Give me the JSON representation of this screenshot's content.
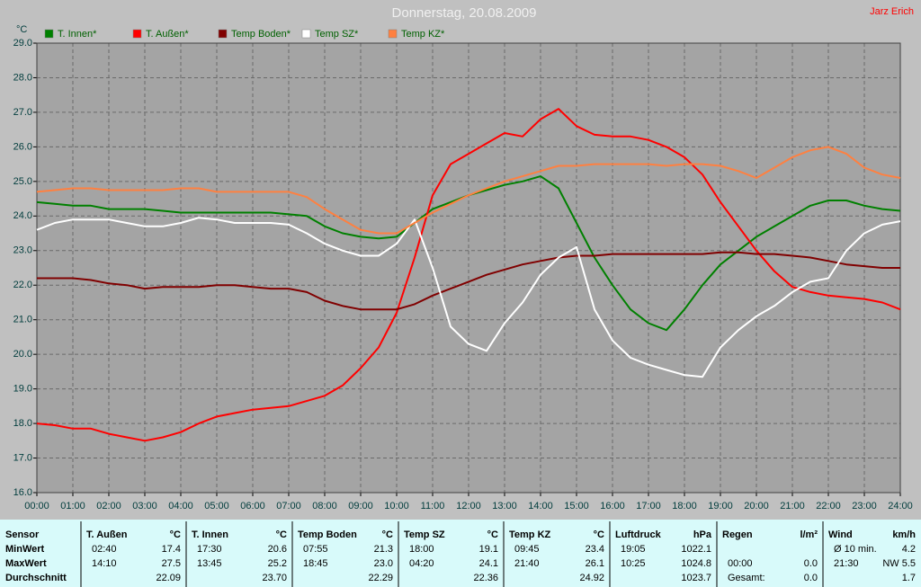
{
  "chart_data": {
    "type": "line",
    "title": "Donnerstag, 20.08.2009",
    "author": "Jarz Erich",
    "y_label": "°C",
    "grid": true,
    "x": [
      0,
      0.5,
      1,
      1.5,
      2,
      2.5,
      3,
      3.5,
      4,
      4.5,
      5,
      5.5,
      6,
      6.5,
      7,
      7.5,
      8,
      8.5,
      9,
      9.5,
      10,
      10.5,
      11,
      11.5,
      12,
      12.5,
      13,
      13.5,
      14,
      14.5,
      15,
      15.5,
      16,
      16.5,
      17,
      17.5,
      18,
      18.5,
      19,
      19.5,
      20,
      20.5,
      21,
      21.5,
      22,
      22.5,
      23,
      23.5,
      24
    ],
    "xlim": [
      0,
      24
    ],
    "xticks": [
      {
        "value": 0,
        "label": "00:00"
      },
      {
        "value": 1,
        "label": "01:00"
      },
      {
        "value": 2,
        "label": "02:00"
      },
      {
        "value": 3,
        "label": "03:00"
      },
      {
        "value": 4,
        "label": "04:00"
      },
      {
        "value": 5,
        "label": "05:00"
      },
      {
        "value": 6,
        "label": "06:00"
      },
      {
        "value": 7,
        "label": "07:00"
      },
      {
        "value": 8,
        "label": "08:00"
      },
      {
        "value": 9,
        "label": "09:00"
      },
      {
        "value": 10,
        "label": "10:00"
      },
      {
        "value": 11,
        "label": "11:00"
      },
      {
        "value": 12,
        "label": "12:00"
      },
      {
        "value": 13,
        "label": "13:00"
      },
      {
        "value": 14,
        "label": "14:00"
      },
      {
        "value": 15,
        "label": "15:00"
      },
      {
        "value": 16,
        "label": "16:00"
      },
      {
        "value": 17,
        "label": "17:00"
      },
      {
        "value": 18,
        "label": "18:00"
      },
      {
        "value": 19,
        "label": "19:00"
      },
      {
        "value": 20,
        "label": "20:00"
      },
      {
        "value": 21,
        "label": "21:00"
      },
      {
        "value": 22,
        "label": "22:00"
      },
      {
        "value": 23,
        "label": "23:00"
      },
      {
        "value": 24,
        "label": "24:00"
      }
    ],
    "ylim": [
      16,
      29
    ],
    "yticks": [
      {
        "value": 16,
        "label": "16.0"
      },
      {
        "value": 17,
        "label": "17.0"
      },
      {
        "value": 18,
        "label": "18.0"
      },
      {
        "value": 19,
        "label": "19.0"
      },
      {
        "value": 20,
        "label": "20.0"
      },
      {
        "value": 21,
        "label": "21.0"
      },
      {
        "value": 22,
        "label": "22.0"
      },
      {
        "value": 23,
        "label": "23.0"
      },
      {
        "value": 24,
        "label": "24.0"
      },
      {
        "value": 25,
        "label": "25.0"
      },
      {
        "value": 26,
        "label": "26.0"
      },
      {
        "value": 27,
        "label": "27.0"
      },
      {
        "value": 28,
        "label": "28.0"
      },
      {
        "value": 29,
        "label": "29.0"
      }
    ],
    "series": [
      {
        "name": "T. Innen*",
        "color": "#008000",
        "values": [
          24.4,
          24.35,
          24.3,
          24.3,
          24.2,
          24.2,
          24.2,
          24.15,
          24.1,
          24.1,
          24.1,
          24.1,
          24.1,
          24.1,
          24.05,
          24.0,
          23.7,
          23.5,
          23.4,
          23.35,
          23.4,
          23.8,
          24.2,
          24.4,
          24.6,
          24.75,
          24.9,
          25.0,
          25.15,
          24.8,
          23.8,
          22.8,
          22.0,
          21.3,
          20.9,
          20.7,
          21.3,
          22.0,
          22.6,
          23.0,
          23.4,
          23.7,
          24.0,
          24.3,
          24.45,
          24.45,
          24.3,
          24.2,
          24.15
        ]
      },
      {
        "name": "T. Außen*",
        "color": "#ff0000",
        "values": [
          18.0,
          17.95,
          17.85,
          17.85,
          17.7,
          17.6,
          17.5,
          17.6,
          17.75,
          18.0,
          18.2,
          18.3,
          18.4,
          18.45,
          18.5,
          18.65,
          18.8,
          19.1,
          19.6,
          20.2,
          21.2,
          22.8,
          24.6,
          25.5,
          25.8,
          26.1,
          26.4,
          26.3,
          26.8,
          27.1,
          26.6,
          26.35,
          26.3,
          26.3,
          26.2,
          26.0,
          25.7,
          25.2,
          24.4,
          23.7,
          23.0,
          22.4,
          21.95,
          21.8,
          21.7,
          21.65,
          21.6,
          21.5,
          21.3
        ]
      },
      {
        "name": "Temp Boden*",
        "color": "#800000",
        "values": [
          22.2,
          22.2,
          22.2,
          22.15,
          22.05,
          22.0,
          21.9,
          21.95,
          21.95,
          21.95,
          22.0,
          22.0,
          21.95,
          21.9,
          21.9,
          21.8,
          21.55,
          21.4,
          21.3,
          21.3,
          21.3,
          21.45,
          21.7,
          21.9,
          22.1,
          22.3,
          22.45,
          22.6,
          22.7,
          22.8,
          22.85,
          22.85,
          22.9,
          22.9,
          22.9,
          22.9,
          22.9,
          22.9,
          22.95,
          22.95,
          22.9,
          22.9,
          22.85,
          22.8,
          22.7,
          22.6,
          22.55,
          22.5,
          22.5
        ]
      },
      {
        "name": "Temp SZ*",
        "color": "#ffffff",
        "values": [
          23.6,
          23.8,
          23.9,
          23.9,
          23.9,
          23.8,
          23.7,
          23.7,
          23.8,
          23.95,
          23.9,
          23.8,
          23.8,
          23.8,
          23.75,
          23.5,
          23.2,
          23.0,
          22.85,
          22.85,
          23.2,
          23.9,
          22.5,
          20.8,
          20.3,
          20.1,
          20.9,
          21.5,
          22.3,
          22.8,
          23.1,
          21.3,
          20.4,
          19.9,
          19.7,
          19.55,
          19.4,
          19.35,
          20.2,
          20.7,
          21.1,
          21.4,
          21.8,
          22.1,
          22.2,
          23.0,
          23.5,
          23.75,
          23.85
        ]
      },
      {
        "name": "Temp KZ*",
        "color": "#ff8040",
        "values": [
          24.7,
          24.75,
          24.8,
          24.8,
          24.75,
          24.75,
          24.75,
          24.75,
          24.8,
          24.8,
          24.7,
          24.7,
          24.7,
          24.7,
          24.7,
          24.55,
          24.2,
          23.9,
          23.6,
          23.5,
          23.5,
          23.8,
          24.1,
          24.35,
          24.6,
          24.8,
          25.0,
          25.15,
          25.3,
          25.45,
          25.45,
          25.5,
          25.5,
          25.5,
          25.5,
          25.45,
          25.5,
          25.5,
          25.45,
          25.3,
          25.1,
          25.4,
          25.7,
          25.9,
          26.0,
          25.8,
          25.4,
          25.2,
          25.1
        ]
      }
    ]
  },
  "table": {
    "header": {
      "label": "Sensor",
      "groups": [
        [
          "T. Außen",
          "°C"
        ],
        [
          "T. Innen",
          "°C"
        ],
        [
          "Temp Boden",
          "°C"
        ],
        [
          "Temp SZ",
          "°C"
        ],
        [
          "Temp KZ",
          "°C"
        ],
        [
          "Luftdruck",
          "hPa"
        ],
        [
          "Regen",
          "l/m²"
        ],
        [
          "Wind",
          "km/h"
        ]
      ]
    },
    "rows": [
      {
        "label": "MinWert",
        "groups": [
          [
            "02:40",
            "17.4"
          ],
          [
            "17:30",
            "20.6"
          ],
          [
            "07:55",
            "21.3"
          ],
          [
            "18:00",
            "19.1"
          ],
          [
            "09:45",
            "23.4"
          ],
          [
            "19:05",
            "1022.1"
          ],
          [
            null,
            null
          ],
          [
            "Ø 10 min.",
            "4.2"
          ]
        ]
      },
      {
        "label": "MaxWert",
        "groups": [
          [
            "14:10",
            "27.5"
          ],
          [
            "13:45",
            "25.2"
          ],
          [
            "18:45",
            "23.0"
          ],
          [
            "04:20",
            "24.1"
          ],
          [
            "21:40",
            "26.1"
          ],
          [
            "10:25",
            "1024.8"
          ],
          [
            "00:00",
            "0.0"
          ],
          [
            "21:30",
            "NW 5.5"
          ]
        ]
      },
      {
        "label": "Durchschnitt",
        "groups": [
          [
            null,
            "22.09"
          ],
          [
            null,
            "23.70"
          ],
          [
            null,
            "22.29"
          ],
          [
            null,
            "22.36"
          ],
          [
            null,
            "24.92"
          ],
          [
            null,
            "1023.7"
          ],
          [
            "Gesamt:",
            "0.0"
          ],
          [
            null,
            "1.7"
          ]
        ]
      }
    ]
  }
}
